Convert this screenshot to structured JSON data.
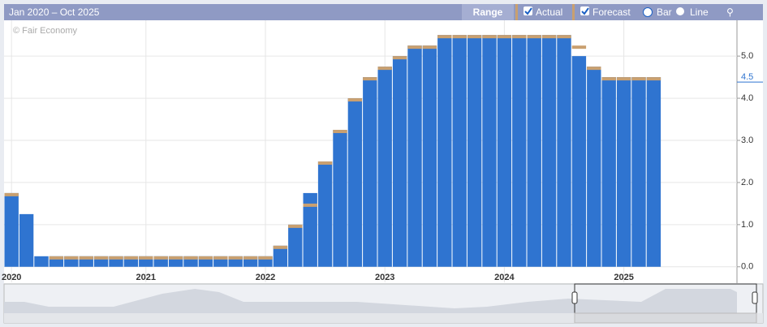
{
  "chart_data": {
    "type": "bar",
    "subtitle": "Jan 2020 – Oct 2025",
    "range_button": "Range",
    "view_options": [
      "Bar",
      "Line"
    ],
    "watermark": "© Fair Economy",
    "categories": [
      "2020",
      null,
      null,
      null,
      null,
      null,
      null,
      null,
      null,
      "2021",
      null,
      null,
      null,
      null,
      null,
      null,
      null,
      "2022",
      null,
      null,
      null,
      null,
      null,
      null,
      null,
      "2023",
      null,
      null,
      null,
      null,
      null,
      null,
      null,
      "2024",
      null,
      null,
      null,
      null,
      null,
      null,
      null,
      "2025",
      null,
      null
    ],
    "series": [
      {
        "name": "Actual",
        "color": "#2f74d0",
        "values": [
          1.75,
          1.25,
          0.25,
          0.25,
          0.25,
          0.25,
          0.25,
          0.25,
          0.25,
          0.25,
          0.25,
          0.25,
          0.25,
          0.25,
          0.25,
          0.25,
          0.25,
          0.25,
          0.5,
          1.0,
          1.75,
          2.5,
          3.25,
          4.0,
          4.5,
          4.75,
          5.0,
          5.25,
          5.25,
          5.5,
          5.5,
          5.5,
          5.5,
          5.5,
          5.5,
          5.5,
          5.5,
          5.5,
          5.0,
          4.75,
          4.5,
          4.5,
          4.5,
          4.5
        ]
      },
      {
        "name": "Forecast",
        "color": "#c9a070",
        "values": [
          1.75,
          null,
          null,
          0.25,
          0.25,
          0.25,
          0.25,
          0.25,
          0.25,
          0.25,
          0.25,
          0.25,
          0.25,
          0.25,
          0.25,
          0.25,
          0.25,
          0.25,
          0.5,
          1.0,
          1.5,
          2.5,
          3.25,
          4.0,
          4.5,
          4.75,
          5.0,
          5.25,
          5.25,
          5.5,
          5.5,
          5.5,
          5.5,
          5.5,
          5.5,
          5.5,
          5.5,
          5.5,
          5.25,
          4.75,
          4.5,
          4.5,
          4.5,
          4.5
        ]
      }
    ],
    "ylim": [
      -0.37,
      5.85
    ],
    "yticks": [
      {
        "value": 0,
        "label": "0.0"
      },
      {
        "value": 1,
        "label": "1.0"
      },
      {
        "value": 2,
        "label": "2.0"
      },
      {
        "value": 3,
        "label": "3.0"
      },
      {
        "value": 4,
        "label": "4.0"
      },
      {
        "value": 5,
        "label": "5.0"
      }
    ],
    "last_value": {
      "value": 4.5,
      "label": "4.5"
    },
    "grid": true
  }
}
